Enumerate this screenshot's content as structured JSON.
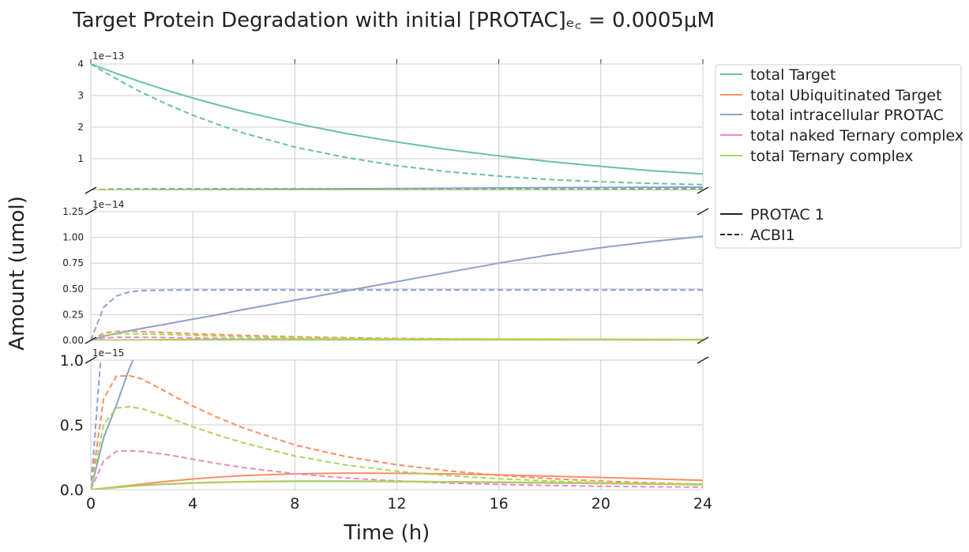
{
  "chart_data": {
    "type": "line",
    "title": "Target Protein Degradation with initial [PROTAC]ₑ꜀ = 0.0005μM",
    "xlabel": "Time (h)",
    "ylabel": "Amount (umol)",
    "x_ticks": [
      0,
      4,
      8,
      12,
      16,
      20,
      24
    ],
    "xlim": [
      0,
      24
    ],
    "x": [
      0,
      0.5,
      1,
      1.5,
      2,
      3,
      4,
      5,
      6,
      8,
      10,
      12,
      14,
      16,
      18,
      20,
      22,
      24
    ],
    "panels": [
      {
        "name": "top",
        "ylim": [
          0,
          4e-13
        ],
        "y_ticks": [
          "1",
          "2",
          "3",
          "4"
        ],
        "tick_values": [
          1e-13,
          2e-13,
          3e-13,
          4e-13
        ],
        "exponent_label": "1e−13"
      },
      {
        "name": "middle",
        "ylim": [
          0,
          1.25e-14
        ],
        "y_ticks": [
          "0.00",
          "0.25",
          "0.50",
          "0.75",
          "1.00",
          "1.25"
        ],
        "tick_values": [
          0,
          2.5e-15,
          5e-15,
          7.5e-15,
          1e-14,
          1.25e-14
        ],
        "exponent_label": "1e−14"
      },
      {
        "name": "bottom",
        "ylim": [
          0,
          1e-15
        ],
        "y_ticks": [
          "0.0",
          "0.5",
          "1.0"
        ],
        "tick_values": [
          0,
          5e-16,
          1e-15
        ],
        "exponent_label": "1e−15"
      }
    ],
    "series": [
      {
        "name": "total Target",
        "compound": "PROTAC 1",
        "color": "#66c2a5",
        "dash": "solid",
        "y": [
          4e-13,
          3.85e-13,
          3.7e-13,
          3.56e-13,
          3.42e-13,
          3.16e-13,
          2.92e-13,
          2.7e-13,
          2.49e-13,
          2.12e-13,
          1.8e-13,
          1.53e-13,
          1.29e-13,
          1.09e-13,
          9.1e-14,
          7.6e-14,
          6.2e-14,
          5.2e-14
        ]
      },
      {
        "name": "total Target",
        "compound": "ACBI1",
        "color": "#66c2a5",
        "dash": "dashed",
        "y": [
          4e-13,
          3.76e-13,
          3.53e-13,
          3.31e-13,
          3.1e-13,
          2.72e-13,
          2.38e-13,
          2.08e-13,
          1.81e-13,
          1.37e-13,
          1.04e-13,
          7.8e-14,
          5.9e-14,
          4.5e-14,
          3.4e-14,
          2.7e-14,
          2.2e-14,
          1.8e-14
        ]
      },
      {
        "name": "total Ubiquitinated Target",
        "compound": "PROTAC 1",
        "color": "#fc8d62",
        "dash": "solid",
        "y": [
          0,
          1e-17,
          2.1e-17,
          3.2e-17,
          4.3e-17,
          6.4e-17,
          8.2e-17,
          9.7e-17,
          1.08e-16,
          1.22e-16,
          1.27e-16,
          1.26e-16,
          1.21e-16,
          1.14e-16,
          1.04e-16,
          9.4e-17,
          8.3e-17,
          7.2e-17
        ]
      },
      {
        "name": "total Ubiquitinated Target",
        "compound": "ACBI1",
        "color": "#fc8d62",
        "dash": "dashed",
        "y": [
          0,
          7e-16,
          8.75e-16,
          8.8e-16,
          8.55e-16,
          7.5e-16,
          6.45e-16,
          5.55e-16,
          4.75e-16,
          3.45e-16,
          2.55e-16,
          1.92e-16,
          1.45e-16,
          1.1e-16,
          8.5e-17,
          6.6e-17,
          5.2e-17,
          4.2e-17
        ]
      },
      {
        "name": "total intracellular PROTAC",
        "compound": "PROTAC 1",
        "color": "#8da0cb",
        "dash": "solid",
        "y": [
          0,
          4e-16,
          6.5e-16,
          9.3e-16,
          1.16e-15,
          1.6e-15,
          2.06e-15,
          2.5e-15,
          3e-15,
          3.9e-15,
          4.8e-15,
          5.7e-15,
          6.6e-15,
          7.5e-15,
          8.3e-15,
          9e-15,
          9.6e-15,
          1.01e-14
        ]
      },
      {
        "name": "total intracellular PROTAC",
        "compound": "ACBI1",
        "color": "#8da0cb",
        "dash": "dashed",
        "y": [
          0,
          3.2e-15,
          4.3e-15,
          4.7e-15,
          4.83e-15,
          4.88e-15,
          4.89e-15,
          4.89e-15,
          4.89e-15,
          4.89e-15,
          4.89e-15,
          4.89e-15,
          4.89e-15,
          4.89e-15,
          4.89e-15,
          4.89e-15,
          4.89e-15,
          4.89e-15
        ]
      },
      {
        "name": "total naked Ternary complex",
        "compound": "PROTAC 1",
        "color": "#e78ac3",
        "dash": "solid",
        "y": [
          0,
          8e-18,
          1.6e-17,
          2.4e-17,
          3.1e-17,
          4.2e-17,
          5e-17,
          5.6e-17,
          6e-17,
          6.4e-17,
          6.4e-17,
          6.2e-17,
          5.9e-17,
          5.5e-17,
          5.1e-17,
          4.7e-17,
          4.3e-17,
          3.9e-17
        ]
      },
      {
        "name": "total naked Ternary complex",
        "compound": "ACBI1",
        "color": "#e78ac3",
        "dash": "dashed",
        "y": [
          0,
          2.2e-16,
          2.95e-16,
          3e-16,
          2.95e-16,
          2.7e-16,
          2.35e-16,
          2e-16,
          1.7e-16,
          1.23e-16,
          9e-17,
          6.7e-17,
          5.1e-17,
          4e-17,
          3.2e-17,
          2.6e-17,
          2.2e-17,
          1.9e-17
        ]
      },
      {
        "name": "total Ternary complex",
        "compound": "PROTAC 1",
        "color": "#a6d854",
        "dash": "solid",
        "y": [
          0,
          8e-18,
          1.7e-17,
          2.5e-17,
          3.3e-17,
          4.4e-17,
          5.2e-17,
          5.8e-17,
          6.2e-17,
          6.6e-17,
          6.6e-17,
          6.4e-17,
          6.1e-17,
          5.8e-17,
          5.4e-17,
          5e-17,
          4.6e-17,
          4.3e-17
        ]
      },
      {
        "name": "total Ternary complex",
        "compound": "ACBI1",
        "color": "#a6d854",
        "dash": "dashed",
        "y": [
          0,
          5e-16,
          6.3e-16,
          6.4e-16,
          6.25e-16,
          5.6e-16,
          4.85e-16,
          4.2e-16,
          3.6e-16,
          2.6e-16,
          1.9e-16,
          1.42e-16,
          1.08e-16,
          8.4e-17,
          6.6e-17,
          5.3e-17,
          4.4e-17,
          3.7e-17
        ]
      }
    ],
    "legend": {
      "placement": "right",
      "entries": [
        {
          "label": "total Target",
          "color": "#66c2a5",
          "dash": "solid"
        },
        {
          "label": "total Ubiquitinated Target",
          "color": "#fc8d62",
          "dash": "solid"
        },
        {
          "label": "total intracellular PROTAC",
          "color": "#8da0cb",
          "dash": "solid"
        },
        {
          "label": "total naked Ternary complex",
          "color": "#e78ac3",
          "dash": "solid"
        },
        {
          "label": "total Ternary complex",
          "color": "#a6d854",
          "dash": "solid"
        },
        {
          "label": "PROTAC 1",
          "color": "#222222",
          "dash": "solid"
        },
        {
          "label": "ACBI1",
          "color": "#222222",
          "dash": "dashed"
        }
      ]
    },
    "grid": true
  }
}
